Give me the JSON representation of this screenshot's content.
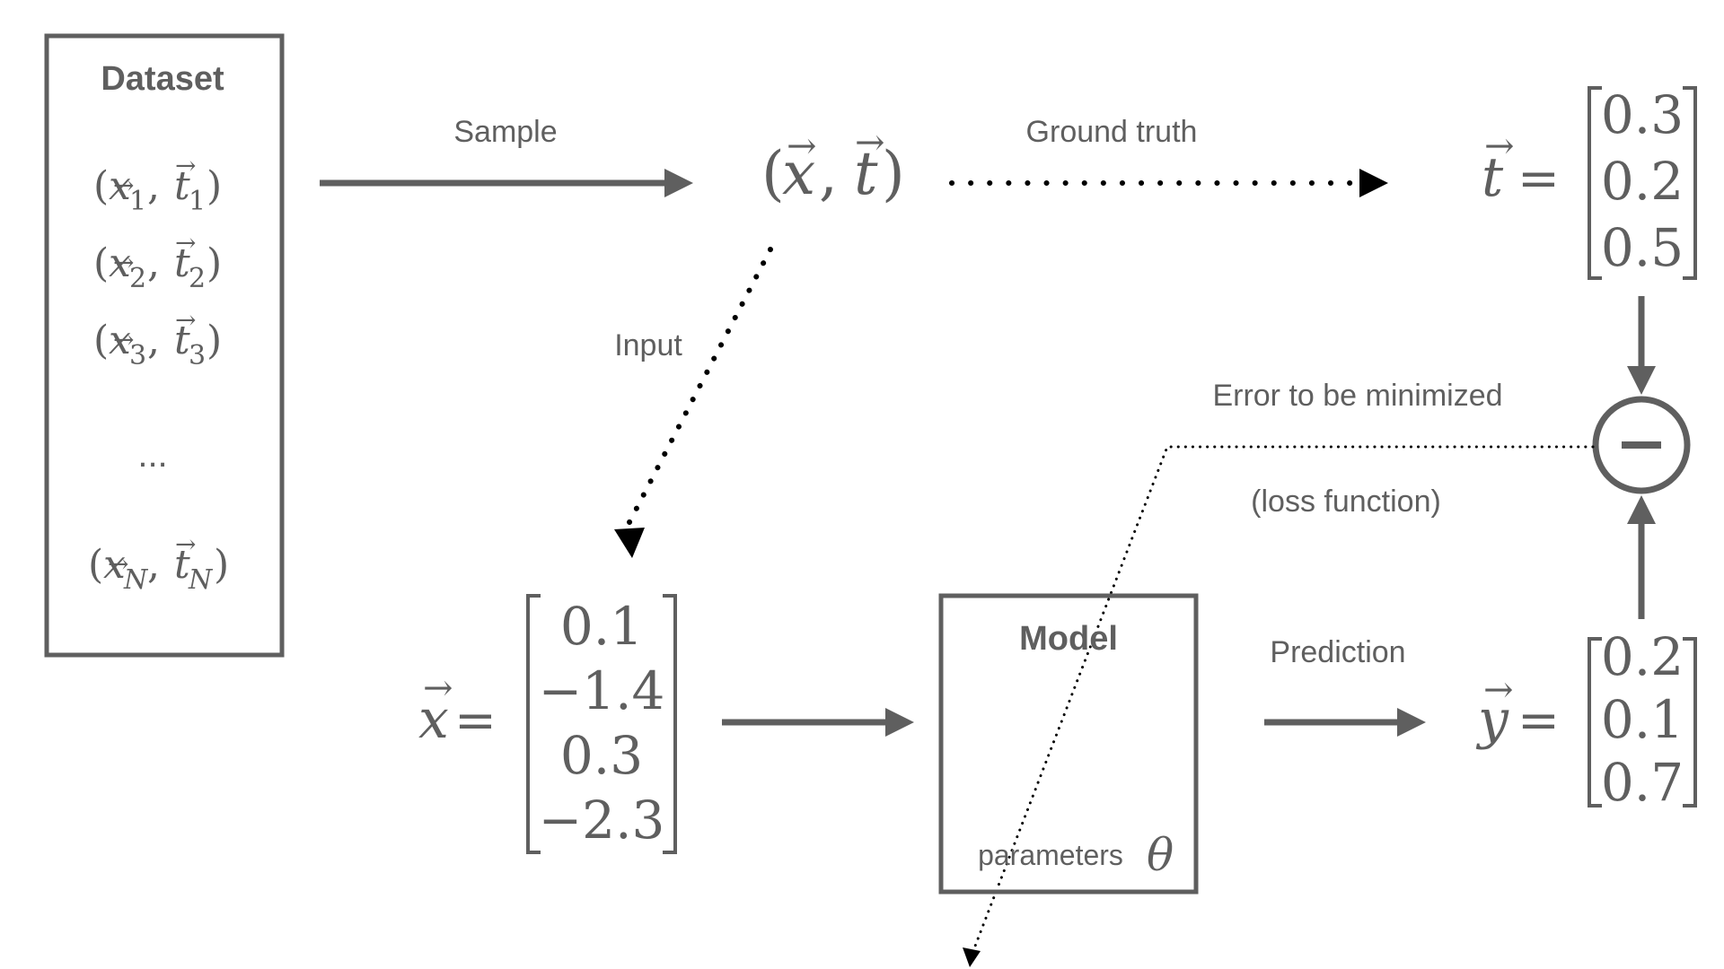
{
  "colors": {
    "ink": "#5f5f5f",
    "background": "#ffffff"
  },
  "dataset": {
    "title": "Dataset",
    "rows": [
      {
        "x": "x",
        "t": "t",
        "sub": "1"
      },
      {
        "x": "x",
        "t": "t",
        "sub": "2"
      },
      {
        "x": "x",
        "t": "t",
        "sub": "3"
      },
      {
        "x": "x",
        "t": "t",
        "sub": "N"
      }
    ],
    "ellipsis": "..."
  },
  "labels": {
    "sample": "Sample",
    "ground_truth": "Ground truth",
    "input": "Input",
    "error_line1": "Error to be minimized",
    "error_line2": "(loss function)",
    "prediction": "Prediction"
  },
  "pair": {
    "x": "x",
    "t": "t"
  },
  "target_vector": {
    "symbol": "t",
    "values": [
      "0.3",
      "0.2",
      "0.5"
    ]
  },
  "input_vector": {
    "symbol": "x",
    "values": [
      "0.1",
      "−1.4",
      "0.3",
      "−2.3"
    ]
  },
  "output_vector": {
    "symbol": "y",
    "values": [
      "0.2",
      "0.1",
      "0.7"
    ]
  },
  "model": {
    "title": "Model",
    "params_label": "parameters",
    "theta": "θ"
  },
  "operator": {
    "icon": "minus-circle-icon"
  }
}
